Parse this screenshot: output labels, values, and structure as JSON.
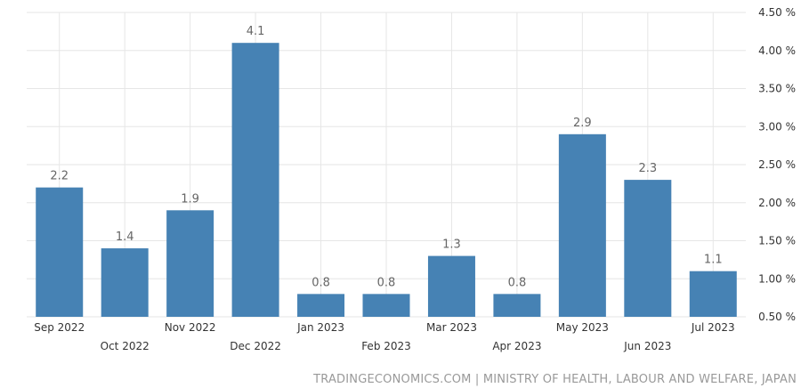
{
  "chart_data": {
    "type": "bar",
    "categories": [
      "Sep 2022",
      "Oct 2022",
      "Nov 2022",
      "Dec 2022",
      "Jan 2023",
      "Feb 2023",
      "Mar 2023",
      "Apr 2023",
      "May 2023",
      "Jun 2023",
      "Jul 2023"
    ],
    "values": [
      2.2,
      1.4,
      1.9,
      4.1,
      0.8,
      0.8,
      1.3,
      0.8,
      2.9,
      2.3,
      1.1
    ],
    "data_labels": [
      "2.2",
      "1.4",
      "1.9",
      "4.1",
      "0.8",
      "0.8",
      "1.3",
      "0.8",
      "2.9",
      "2.3",
      "1.1"
    ],
    "title": "",
    "xlabel": "",
    "ylabel": "",
    "ylim": [
      0.5,
      4.5
    ],
    "y_ticks": [
      0.5,
      1.0,
      1.5,
      2.0,
      2.5,
      3.0,
      3.5,
      4.0,
      4.5
    ],
    "y_tick_labels": [
      "0.50 %",
      "1.00 %",
      "1.50 %",
      "2.00 %",
      "2.50 %",
      "3.00 %",
      "3.50 %",
      "4.00 %",
      "4.50 %"
    ],
    "y_axis_side": "right",
    "grid": true,
    "legend": "none",
    "bar_color": "#4682b4"
  },
  "source": "TRADINGECONOMICS.COM | MINISTRY OF HEALTH, LABOUR AND WELFARE, JAPAN"
}
